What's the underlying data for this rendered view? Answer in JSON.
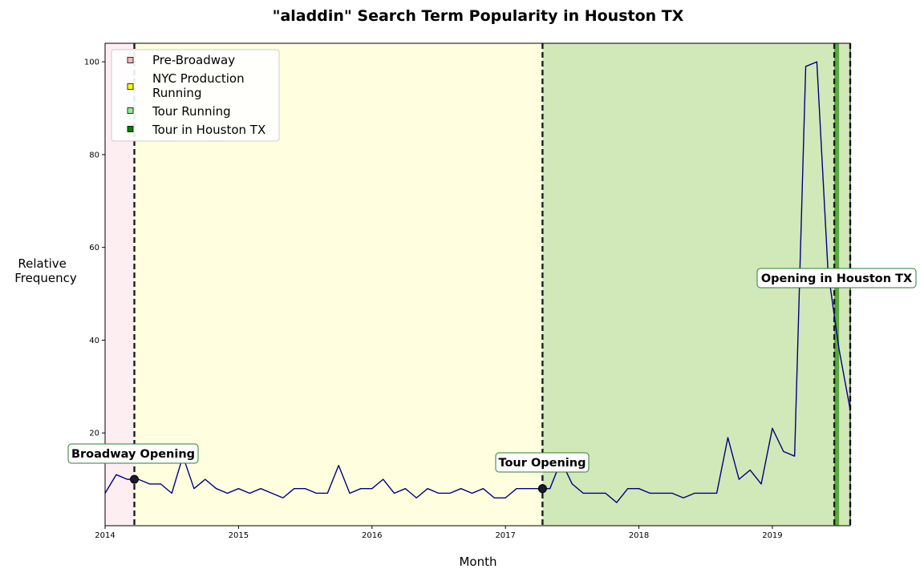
{
  "chart_data": {
    "type": "line",
    "title": "\"aladdin\" Search Term Popularity in Houston TX",
    "xlabel": "Month",
    "ylabel_lines": [
      "Relative",
      "Frequency"
    ],
    "xlim": [
      "2014-01",
      "2019-08"
    ],
    "ylim": [
      0,
      104
    ],
    "xticks": [
      {
        "date": "2014-01",
        "label": "2014"
      },
      {
        "date": "2015-01",
        "label": "2015"
      },
      {
        "date": "2016-01",
        "label": "2016"
      },
      {
        "date": "2017-01",
        "label": "2017"
      },
      {
        "date": "2018-01",
        "label": "2018"
      },
      {
        "date": "2019-01",
        "label": "2019"
      }
    ],
    "yticks": [
      20,
      40,
      60,
      80,
      100
    ],
    "grid": false,
    "series": [
      {
        "color": "#000080",
        "points": [
          [
            "2014-01",
            7
          ],
          [
            "2014-02",
            11
          ],
          [
            "2014-03",
            10
          ],
          [
            "2014-04",
            10
          ],
          [
            "2014-05",
            9
          ],
          [
            "2014-06",
            9
          ],
          [
            "2014-07",
            7
          ],
          [
            "2014-08",
            15
          ],
          [
            "2014-09",
            8
          ],
          [
            "2014-10",
            10
          ],
          [
            "2014-11",
            8
          ],
          [
            "2014-12",
            7
          ],
          [
            "2015-01",
            8
          ],
          [
            "2015-02",
            7
          ],
          [
            "2015-03",
            8
          ],
          [
            "2015-04",
            7
          ],
          [
            "2015-05",
            6
          ],
          [
            "2015-06",
            8
          ],
          [
            "2015-07",
            8
          ],
          [
            "2015-08",
            7
          ],
          [
            "2015-09",
            7
          ],
          [
            "2015-10",
            13
          ],
          [
            "2015-11",
            7
          ],
          [
            "2015-12",
            8
          ],
          [
            "2016-01",
            8
          ],
          [
            "2016-02",
            10
          ],
          [
            "2016-03",
            7
          ],
          [
            "2016-04",
            8
          ],
          [
            "2016-05",
            6
          ],
          [
            "2016-06",
            8
          ],
          [
            "2016-07",
            7
          ],
          [
            "2016-08",
            7
          ],
          [
            "2016-09",
            8
          ],
          [
            "2016-10",
            7
          ],
          [
            "2016-11",
            8
          ],
          [
            "2016-12",
            6
          ],
          [
            "2017-01",
            6
          ],
          [
            "2017-02",
            8
          ],
          [
            "2017-03",
            8
          ],
          [
            "2017-04",
            8
          ],
          [
            "2017-05",
            8
          ],
          [
            "2017-06",
            14
          ],
          [
            "2017-07",
            9
          ],
          [
            "2017-08",
            7
          ],
          [
            "2017-09",
            7
          ],
          [
            "2017-10",
            7
          ],
          [
            "2017-11",
            5
          ],
          [
            "2017-12",
            8
          ],
          [
            "2018-01",
            8
          ],
          [
            "2018-02",
            7
          ],
          [
            "2018-03",
            7
          ],
          [
            "2018-04",
            7
          ],
          [
            "2018-05",
            6
          ],
          [
            "2018-06",
            7
          ],
          [
            "2018-07",
            7
          ],
          [
            "2018-08",
            7
          ],
          [
            "2018-09",
            19
          ],
          [
            "2018-10",
            10
          ],
          [
            "2018-11",
            12
          ],
          [
            "2018-12",
            9
          ],
          [
            "2019-01",
            21
          ],
          [
            "2019-02",
            16
          ],
          [
            "2019-03",
            15
          ],
          [
            "2019-04",
            99
          ],
          [
            "2019-05",
            100
          ],
          [
            "2019-06",
            55
          ],
          [
            "2019-07",
            38
          ],
          [
            "2019-08",
            25
          ]
        ]
      }
    ],
    "periods": [
      {
        "name": "Pre-Broadway",
        "start": "2014-01",
        "end": "2014-03-20",
        "fill": "#fdeef2",
        "swatch": "#f4b6c2"
      },
      {
        "name": "NYC Production Running",
        "start": "2014-03-20",
        "end": "2017-04-11",
        "fill": "#ffffe0",
        "swatch": "#ffff00"
      },
      {
        "name": "Tour Running",
        "start": "2017-04-11",
        "end": "2019-08",
        "fill": "#d1e8b8",
        "swatch": "#90ee90"
      },
      {
        "name": "Tour in Houston TX",
        "start": "2019-06-18",
        "end": "2019-07-01",
        "fill": "#5aa83e",
        "swatch": "#008000"
      }
    ],
    "legend": {
      "position": "top-left"
    },
    "event_lines": [
      {
        "date": "2014-03-20"
      },
      {
        "date": "2017-04-11"
      },
      {
        "date": "2019-06-18"
      },
      {
        "date": "2019-07-31"
      }
    ],
    "annotations": [
      {
        "text": "Broadway Opening",
        "date": "2014-03-20",
        "marker_value": 10
      },
      {
        "text": "Tour Opening",
        "date": "2017-04-11",
        "marker_value": 8
      },
      {
        "text": "Opening in Houston TX",
        "date": "2019-06-18"
      }
    ],
    "annotation_border_color": "#2e7d32"
  }
}
